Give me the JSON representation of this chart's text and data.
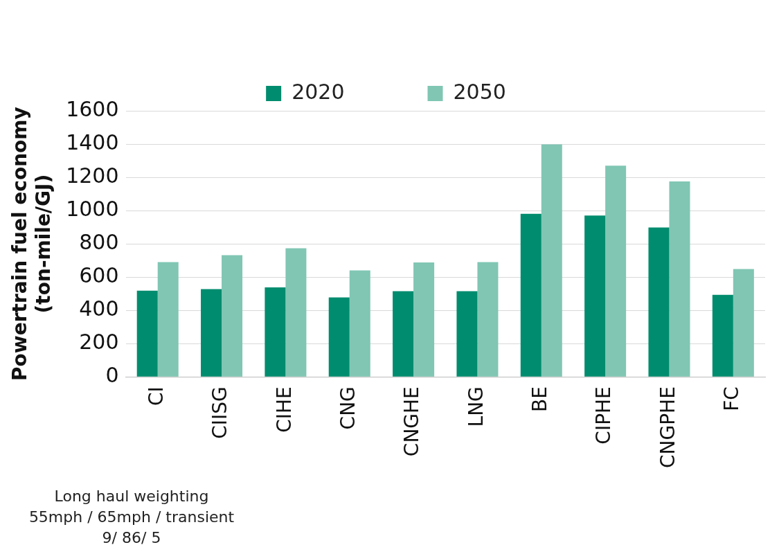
{
  "chart_data": {
    "type": "bar",
    "ylabel": "Powertrain fuel economy\n(ton-mile/GJ)",
    "categories": [
      "CI",
      "CIISG",
      "CIHE",
      "CNG",
      "CNGHE",
      "LNG",
      "BE",
      "CIPHE",
      "CNGPHE",
      "FC"
    ],
    "series": [
      {
        "name": "2020",
        "color": "#008c6e",
        "values": [
          518,
          528,
          538,
          478,
          515,
          515,
          980,
          970,
          898,
          493
        ]
      },
      {
        "name": "2050",
        "color": "#80c6b3",
        "values": [
          690,
          732,
          773,
          640,
          688,
          690,
          1398,
          1270,
          1175,
          648
        ]
      }
    ],
    "ylim": [
      0,
      1600
    ],
    "yticks": [
      0,
      200,
      400,
      600,
      800,
      1000,
      1200,
      1400,
      1600
    ],
    "grid": "y",
    "legend": "top",
    "annotations": [
      "Long haul weighting",
      "55mph / 65mph / transient",
      "9/ 86/ 5"
    ]
  }
}
